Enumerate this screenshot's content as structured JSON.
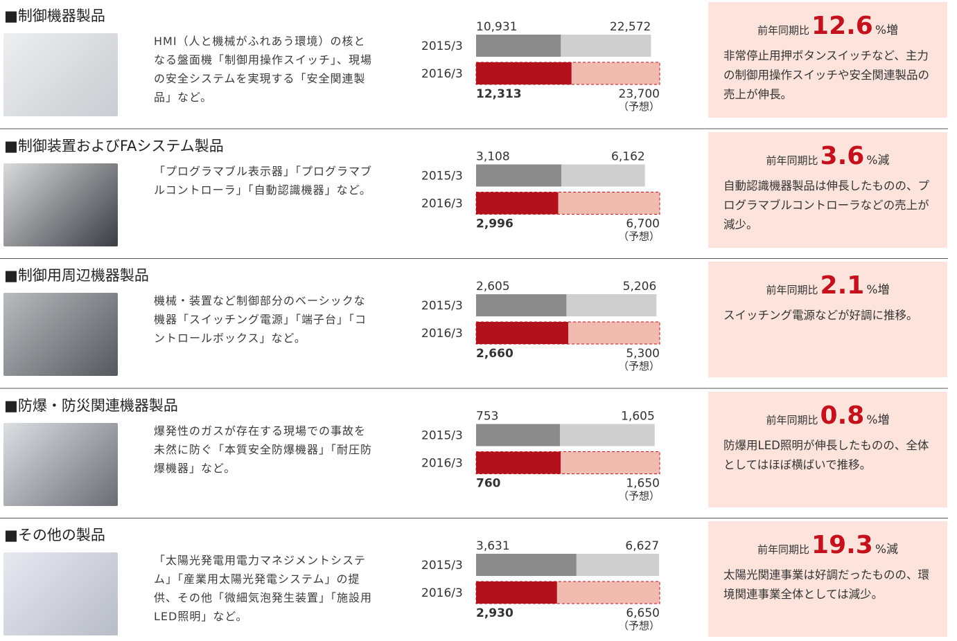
{
  "sections": [
    {
      "title": "■制御機器製品",
      "description": "HMI（人と機械がふれあう環境）の核となる盤面機「制御用操作スイッチ」、現場の安全システムを実現する「安全関連製品」など。",
      "chart": {
        "rows": [
          {
            "period": "2015/3",
            "interim": {
              "value": 10931,
              "label": "10,931"
            },
            "full": {
              "value": 22572,
              "label": "22,572"
            }
          },
          {
            "period": "2016/3",
            "interim": {
              "value": 12313,
              "label": "12,313"
            },
            "full": {
              "value": 23700,
              "label": "23,700"
            },
            "note": "（予想）"
          }
        ]
      },
      "summary": {
        "comparison_label": "前年同期比",
        "change": "12.6",
        "change_unit": "%増",
        "text": "非常停止用押ボタンスイッチなど、主力の制御用操作スイッチや安全関連製品の売上が伸長。"
      }
    },
    {
      "title": "■制御装置およびFAシステム製品",
      "description": "「プログラマブル表示器」「プログラマブルコントローラ」「自動認識機器」など。",
      "chart": {
        "rows": [
          {
            "period": "2015/3",
            "interim": {
              "value": 3108,
              "label": "3,108"
            },
            "full": {
              "value": 6162,
              "label": "6,162"
            }
          },
          {
            "period": "2016/3",
            "interim": {
              "value": 2996,
              "label": "2,996"
            },
            "full": {
              "value": 6700,
              "label": "6,700"
            },
            "note": "（予想）"
          }
        ]
      },
      "summary": {
        "comparison_label": "前年同期比",
        "change": "3.6",
        "change_unit": "%減",
        "text": "自動認識機器製品は伸長したものの、プログラマブルコントローラなどの売上が減少。"
      }
    },
    {
      "title": "■制御用周辺機器製品",
      "description": "機械・装置など制御部分のベーシックな機器「スイッチング電源」「端子台」「コントロールボックス」など。",
      "chart": {
        "rows": [
          {
            "period": "2015/3",
            "interim": {
              "value": 2605,
              "label": "2,605"
            },
            "full": {
              "value": 5206,
              "label": "5,206"
            }
          },
          {
            "period": "2016/3",
            "interim": {
              "value": 2660,
              "label": "2,660"
            },
            "full": {
              "value": 5300,
              "label": "5,300"
            },
            "note": "（予想）"
          }
        ]
      },
      "summary": {
        "comparison_label": "前年同期比",
        "change": "2.1",
        "change_unit": "%増",
        "text": "スイッチング電源などが好調に推移。"
      }
    },
    {
      "title": "■防爆・防災関連機器製品",
      "description": "爆発性のガスが存在する現場での事故を未然に防ぐ「本質安全防爆機器」「耐圧防爆機器」など。",
      "chart": {
        "rows": [
          {
            "period": "2015/3",
            "interim": {
              "value": 753,
              "label": "753"
            },
            "full": {
              "value": 1605,
              "label": "1,605"
            }
          },
          {
            "period": "2016/3",
            "interim": {
              "value": 760,
              "label": "760"
            },
            "full": {
              "value": 1650,
              "label": "1,650"
            },
            "note": "（予想）"
          }
        ]
      },
      "summary": {
        "comparison_label": "前年同期比",
        "change": "0.8",
        "change_unit": "%増",
        "text": "防爆用LED照明が伸長したものの、全体としてはほぼ横ばいで推移。"
      }
    },
    {
      "title": "■その他の製品",
      "description": "「太陽光発電用電力マネジメントシステム」「産業用太陽光発電システム」の提供、その他「微細気泡発生装置」「施設用LED照明」など。",
      "chart": {
        "rows": [
          {
            "period": "2015/3",
            "interim": {
              "value": 3631,
              "label": "3,631"
            },
            "full": {
              "value": 6627,
              "label": "6,627"
            }
          },
          {
            "period": "2016/3",
            "interim": {
              "value": 2930,
              "label": "2,930"
            },
            "full": {
              "value": 6650,
              "label": "6,650"
            },
            "note": "（予想）"
          }
        ]
      },
      "summary": {
        "comparison_label": "前年同期比",
        "change": "19.3",
        "change_unit": "%減",
        "text": "太陽光関連事業は好調だったものの、環境関連事業全体としては減少。"
      }
    }
  ]
}
